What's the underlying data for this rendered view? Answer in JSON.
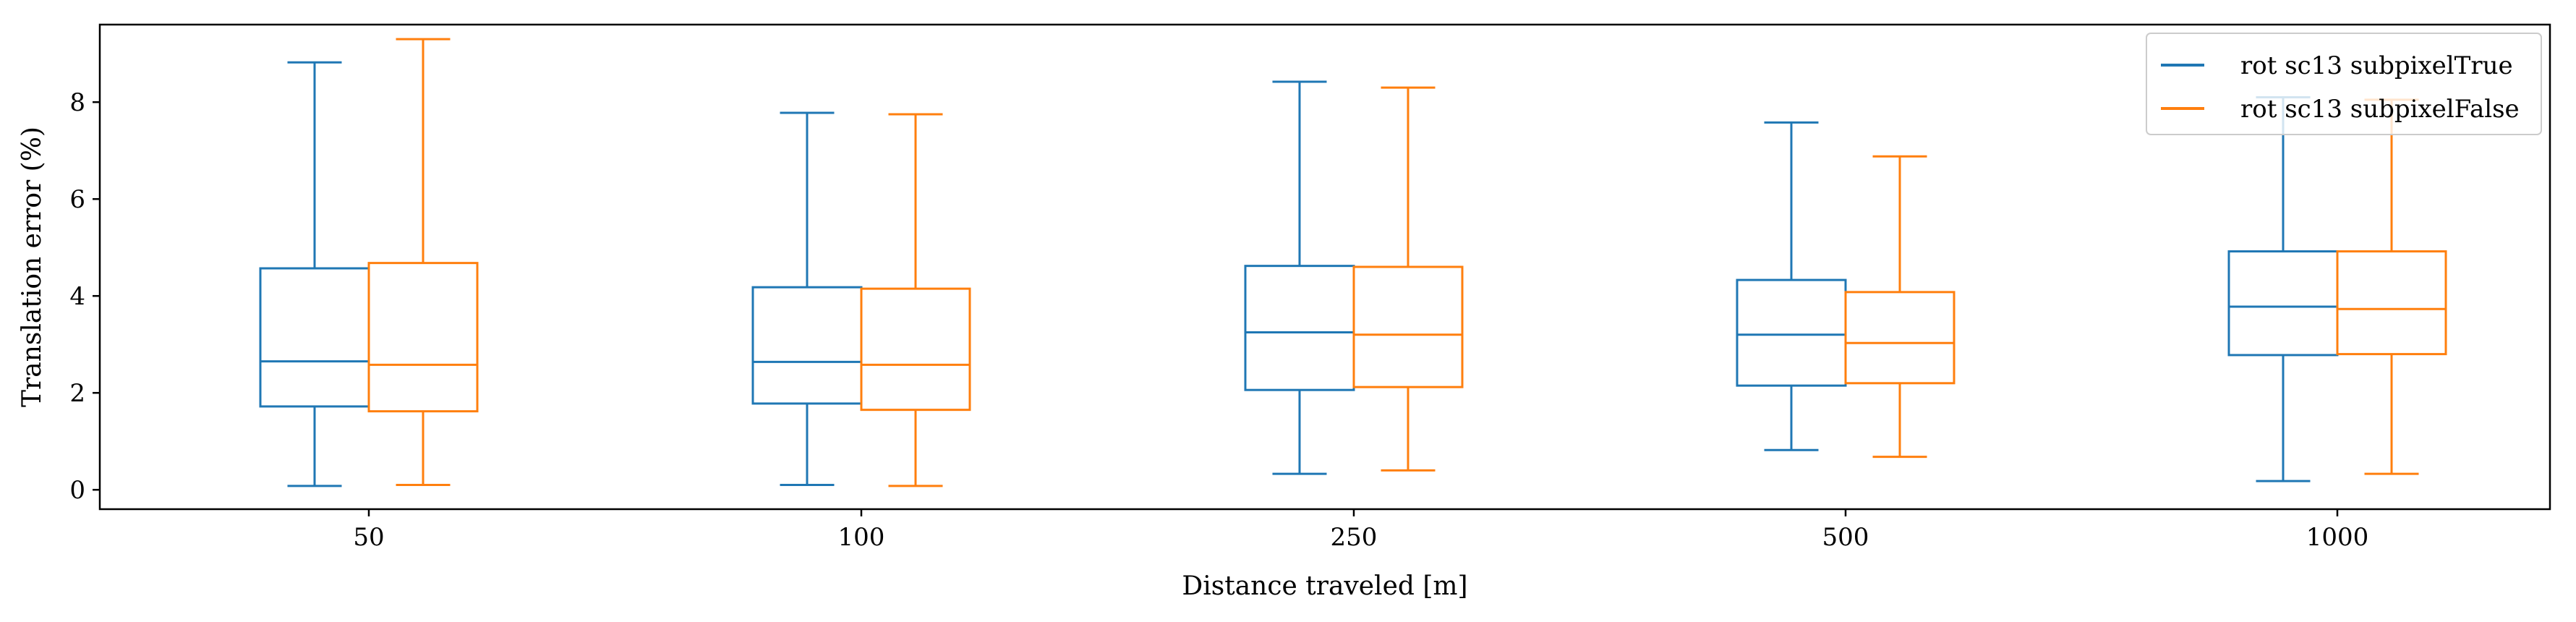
{
  "chart_data": {
    "type": "box",
    "title": "",
    "xlabel": "Distance traveled [m]",
    "ylabel": "Translation error (%)",
    "categories": [
      "50",
      "100",
      "250",
      "500",
      "1000"
    ],
    "ylim": [
      -0.4,
      9.6
    ],
    "yticks": [
      0,
      2,
      4,
      6,
      8
    ],
    "grid": false,
    "legend_position": "top-right",
    "series": [
      {
        "name": "rot sc13 subpixelTrue",
        "color": "#1f77b4",
        "boxes": [
          {
            "whisker_low": 0.08,
            "q1": 1.72,
            "median": 2.65,
            "q3": 4.57,
            "whisker_high": 8.82
          },
          {
            "whisker_low": 0.1,
            "q1": 1.78,
            "median": 2.64,
            "q3": 4.18,
            "whisker_high": 7.78
          },
          {
            "whisker_low": 0.33,
            "q1": 2.06,
            "median": 3.25,
            "q3": 4.62,
            "whisker_high": 8.42
          },
          {
            "whisker_low": 0.82,
            "q1": 2.15,
            "median": 3.2,
            "q3": 4.33,
            "whisker_high": 7.58
          },
          {
            "whisker_low": 0.18,
            "q1": 2.78,
            "median": 3.78,
            "q3": 4.92,
            "whisker_high": 8.1
          }
        ]
      },
      {
        "name": "rot sc13 subpixelFalse",
        "color": "#ff7f0e",
        "boxes": [
          {
            "whisker_low": 0.1,
            "q1": 1.62,
            "median": 2.58,
            "q3": 4.68,
            "whisker_high": 9.3
          },
          {
            "whisker_low": 0.08,
            "q1": 1.65,
            "median": 2.58,
            "q3": 4.15,
            "whisker_high": 7.75
          },
          {
            "whisker_low": 0.4,
            "q1": 2.12,
            "median": 3.2,
            "q3": 4.6,
            "whisker_high": 8.3
          },
          {
            "whisker_low": 0.68,
            "q1": 2.2,
            "median": 3.03,
            "q3": 4.08,
            "whisker_high": 6.88
          },
          {
            "whisker_low": 0.33,
            "q1": 2.8,
            "median": 3.73,
            "q3": 4.92,
            "whisker_high": 8.05
          }
        ]
      }
    ]
  }
}
